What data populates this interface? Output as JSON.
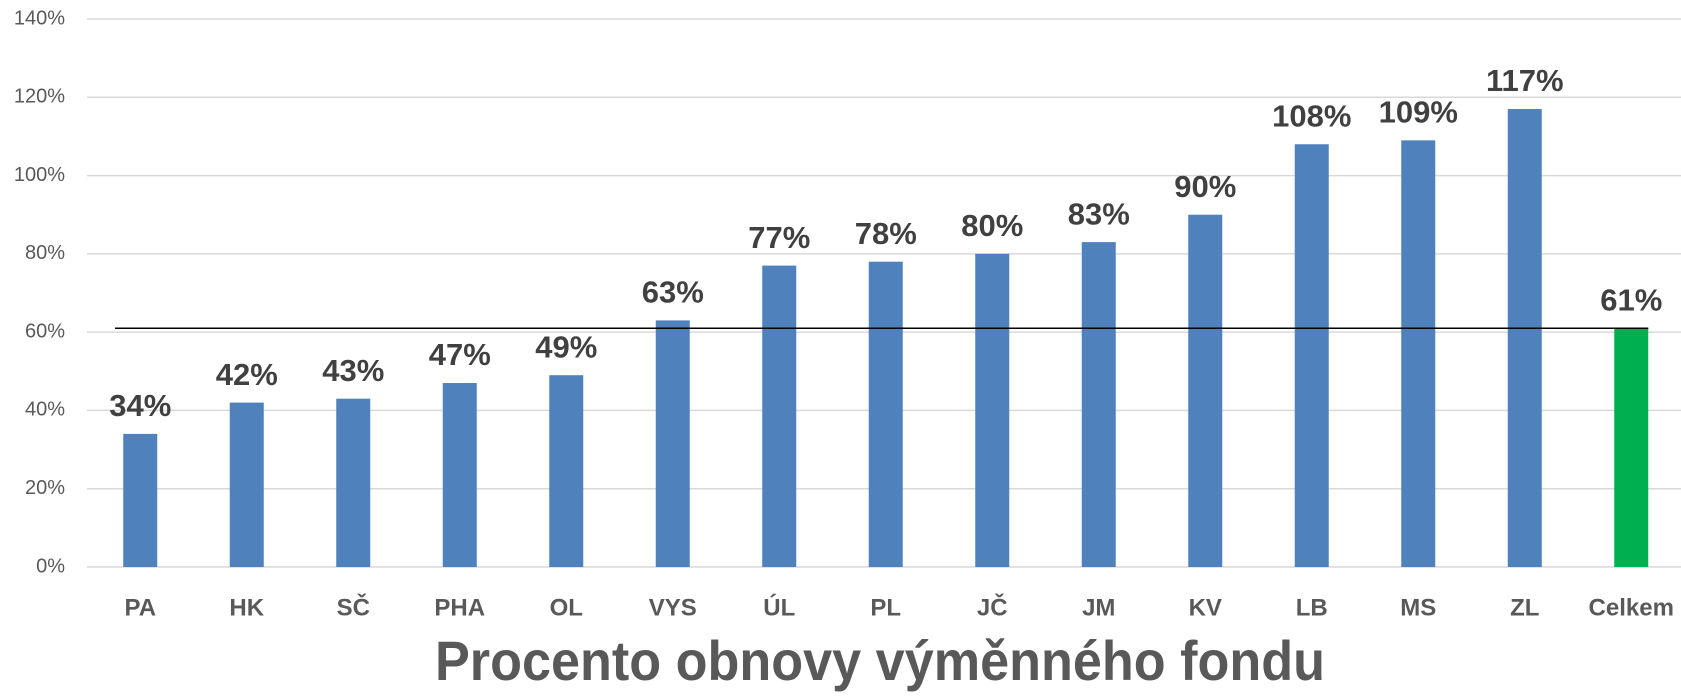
{
  "chart_data": {
    "type": "bar",
    "title": "Procento obnovy výměnného fondu",
    "categories": [
      "PA",
      "HK",
      "SČ",
      "PHA",
      "OL",
      "VYS",
      "ÚL",
      "PL",
      "JČ",
      "JM",
      "KV",
      "LB",
      "MS",
      "ZL",
      "Celkem"
    ],
    "values": [
      34,
      42,
      43,
      47,
      49,
      63,
      77,
      78,
      80,
      83,
      90,
      108,
      109,
      117,
      61
    ],
    "value_labels": [
      "34%",
      "42%",
      "43%",
      "47%",
      "49%",
      "63%",
      "77%",
      "78%",
      "80%",
      "83%",
      "90%",
      "108%",
      "109%",
      "117%",
      "61%"
    ],
    "colors": [
      "#4f81bd",
      "#4f81bd",
      "#4f81bd",
      "#4f81bd",
      "#4f81bd",
      "#4f81bd",
      "#4f81bd",
      "#4f81bd",
      "#4f81bd",
      "#4f81bd",
      "#4f81bd",
      "#4f81bd",
      "#4f81bd",
      "#4f81bd",
      "#00b050"
    ],
    "ylim": [
      0,
      140
    ],
    "yticks": [
      {
        "value": 0,
        "label": "0%"
      },
      {
        "value": 20,
        "label": "20%"
      },
      {
        "value": 40,
        "label": "40%"
      },
      {
        "value": 60,
        "label": "60%"
      },
      {
        "value": 80,
        "label": "80%"
      },
      {
        "value": 100,
        "label": "100%"
      },
      {
        "value": 120,
        "label": "120%"
      },
      {
        "value": 140,
        "label": "140%"
      }
    ],
    "grid": true
  }
}
